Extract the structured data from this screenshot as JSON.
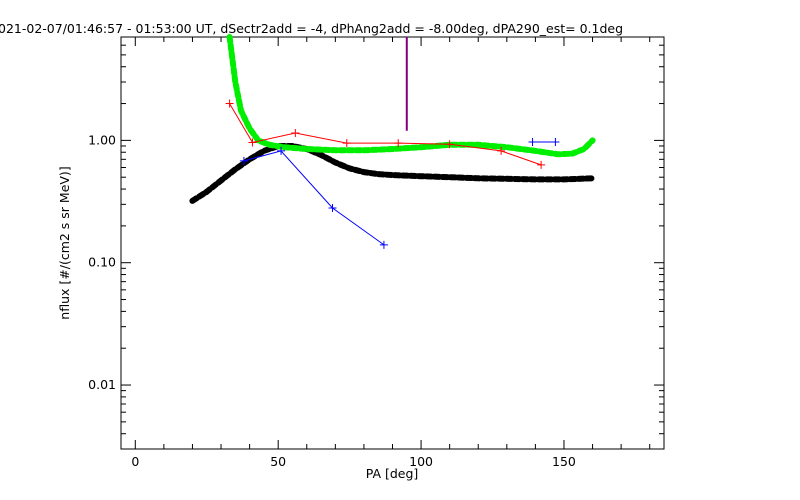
{
  "chart_data": {
    "type": "line",
    "title": "021-02-07/01:46:57 - 01:53:00 UT, dSectr2add = -4, dPhAng2add = -8.00deg, dPA290_est=    0.1deg",
    "xlabel": "PA [deg]",
    "ylabel": "nflux [#/(cm2 s sr MeV)]",
    "xlim": [
      -5,
      185
    ],
    "ylim": [
      0.003,
      7
    ],
    "yscale": "log",
    "grid": false,
    "x_ticks": [
      {
        "value": 0,
        "label": "0"
      },
      {
        "value": 50,
        "label": "50"
      },
      {
        "value": 100,
        "label": "100"
      },
      {
        "value": 150,
        "label": "150"
      }
    ],
    "y_ticks": [
      {
        "value": 0.01,
        "label": "0.01"
      },
      {
        "value": 0.1,
        "label": "0.10"
      },
      {
        "value": 1,
        "label": "1.00"
      }
    ],
    "vertical_marker": {
      "x": 95,
      "y_from": 1.2,
      "y_to": 7,
      "color": "#800080"
    },
    "series": [
      {
        "style": "line-plus",
        "color": "#ff0000",
        "points": [
          [
            33,
            2.0
          ],
          [
            41,
            0.96
          ],
          [
            56,
            1.15
          ],
          [
            74,
            0.95
          ],
          [
            92,
            0.95
          ],
          [
            110,
            0.93
          ],
          [
            128,
            0.82
          ],
          [
            142,
            0.63
          ]
        ]
      },
      {
        "style": "line-plus",
        "color": "#0000ff",
        "points": [
          [
            38,
            0.68
          ],
          [
            51,
            0.82
          ],
          [
            69,
            0.28
          ],
          [
            87,
            0.14
          ]
        ]
      },
      {
        "style": "line-plus",
        "color": "#0000ff",
        "points": [
          [
            139,
            0.97
          ],
          [
            147,
            0.97
          ]
        ]
      },
      {
        "style": "thick-dashed",
        "color": "#000000",
        "points": [
          [
            20,
            0.32
          ],
          [
            25,
            0.38
          ],
          [
            30,
            0.47
          ],
          [
            35,
            0.58
          ],
          [
            40,
            0.7
          ],
          [
            45,
            0.82
          ],
          [
            50,
            0.9
          ],
          [
            55,
            0.9
          ],
          [
            60,
            0.85
          ],
          [
            65,
            0.76
          ],
          [
            70,
            0.66
          ],
          [
            75,
            0.59
          ],
          [
            80,
            0.55
          ],
          [
            85,
            0.53
          ],
          [
            90,
            0.52
          ],
          [
            100,
            0.51
          ],
          [
            110,
            0.5
          ],
          [
            120,
            0.49
          ],
          [
            130,
            0.485
          ],
          [
            140,
            0.48
          ],
          [
            150,
            0.48
          ],
          [
            160,
            0.49
          ]
        ]
      },
      {
        "style": "thick-dashed",
        "color": "#00ee00",
        "points": [
          [
            33,
            7.0
          ],
          [
            35,
            3.0
          ],
          [
            37,
            1.75
          ],
          [
            40,
            1.25
          ],
          [
            43,
            1.0
          ],
          [
            47,
            0.92
          ],
          [
            52,
            0.88
          ],
          [
            60,
            0.85
          ],
          [
            70,
            0.83
          ],
          [
            80,
            0.83
          ],
          [
            90,
            0.85
          ],
          [
            100,
            0.88
          ],
          [
            110,
            0.92
          ],
          [
            120,
            0.92
          ],
          [
            130,
            0.88
          ],
          [
            140,
            0.82
          ],
          [
            148,
            0.77
          ],
          [
            153,
            0.78
          ],
          [
            157,
            0.85
          ],
          [
            160,
            1.0
          ]
        ]
      }
    ]
  }
}
